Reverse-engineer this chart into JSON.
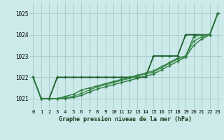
{
  "title": "Graphe pression niveau de la mer (hPa)",
  "background_color": "#cceaea",
  "grid_color": "#aacccc",
  "line_colors": [
    "#1a5c2a",
    "#2d7a3e",
    "#3a8a4a",
    "#2d7a3e"
  ],
  "xlim": [
    -0.5,
    23.5
  ],
  "ylim": [
    1020.5,
    1025.5
  ],
  "yticks": [
    1021,
    1022,
    1023,
    1024,
    1025
  ],
  "xticks": [
    0,
    1,
    2,
    3,
    4,
    5,
    6,
    7,
    8,
    9,
    10,
    11,
    12,
    13,
    14,
    15,
    16,
    17,
    18,
    19,
    20,
    21,
    22,
    23
  ],
  "xtick_labels": [
    "0",
    "1",
    "2",
    "3",
    "4",
    "5",
    "6",
    "7",
    "8",
    "9",
    "10",
    "11",
    "12",
    "13",
    "14",
    "15",
    "16",
    "17",
    "18",
    "19",
    "20",
    "21",
    "22",
    "23"
  ],
  "series": [
    [
      1022.0,
      1021.0,
      1021.0,
      1022.0,
      1022.0,
      1022.0,
      1022.0,
      1022.0,
      1022.0,
      1022.0,
      1022.0,
      1022.0,
      1022.0,
      1022.0,
      1022.0,
      1023.0,
      1023.0,
      1023.0,
      1023.0,
      1024.0,
      1024.0,
      1024.0,
      1024.0,
      1025.0
    ],
    [
      1022.0,
      1021.0,
      1021.0,
      1021.0,
      1021.1,
      1021.2,
      1021.4,
      1021.5,
      1021.6,
      1021.7,
      1021.8,
      1021.9,
      1022.0,
      1022.1,
      1022.2,
      1022.3,
      1022.5,
      1022.7,
      1022.9,
      1023.0,
      1023.9,
      1024.0,
      1024.0,
      1025.0
    ],
    [
      1022.0,
      1021.0,
      1021.0,
      1021.0,
      1021.05,
      1021.1,
      1021.25,
      1021.4,
      1021.55,
      1021.65,
      1021.75,
      1021.85,
      1021.95,
      1022.05,
      1022.15,
      1022.25,
      1022.45,
      1022.65,
      1022.85,
      1023.0,
      1023.7,
      1023.9,
      1024.0,
      1025.0
    ],
    [
      1022.0,
      1021.0,
      1021.0,
      1021.0,
      1021.0,
      1021.05,
      1021.15,
      1021.3,
      1021.45,
      1021.55,
      1021.65,
      1021.75,
      1021.85,
      1021.95,
      1022.05,
      1022.15,
      1022.35,
      1022.55,
      1022.75,
      1022.95,
      1023.5,
      1023.8,
      1024.0,
      1025.0
    ]
  ],
  "linewidths": [
    1.3,
    1.0,
    1.0,
    1.0
  ],
  "marker": "+",
  "markersize": 3.5,
  "markeredgewidth": 0.9
}
